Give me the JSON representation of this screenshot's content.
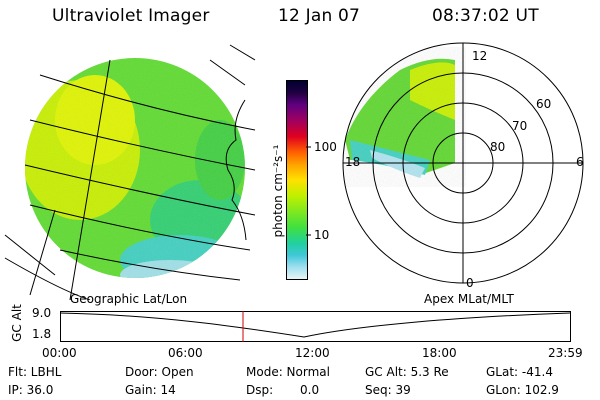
{
  "header": {
    "title": "Ultraviolet Imager",
    "date": "12 Jan 07",
    "time": "08:37:02 UT"
  },
  "colorbar": {
    "unit_label": "photon cm⁻²s⁻¹",
    "ticks": [
      "100",
      "10"
    ],
    "colors": [
      "#000040",
      "#400080",
      "#800080",
      "#c00020",
      "#ff0000",
      "#ff8000",
      "#ffc000",
      "#ffff00",
      "#c0ff00",
      "#80ff00",
      "#40e040",
      "#00d080",
      "#00c0c0",
      "#60d0e0",
      "#a0e0f0",
      "#e0f0f0"
    ]
  },
  "labels": {
    "left_projection": "Geographic Lat/Lon",
    "right_projection": "Apex MLat/MLT"
  },
  "polar": {
    "mlt_labels": [
      "12",
      "18",
      "6",
      "0"
    ],
    "lat_labels": [
      "60",
      "70",
      "80"
    ]
  },
  "altitude_plot": {
    "y_axis_label": "GC Alt",
    "y_ticks": [
      "9.0",
      "1.8"
    ],
    "time_ticks": [
      "00:00",
      "06:00",
      "12:00",
      "18:00",
      "23:59"
    ],
    "current_time_marker_color": "#cc0000"
  },
  "footer": {
    "flt": "Flt: LBHL",
    "ip": "IP: 36.0",
    "door": "Door: Open",
    "gain": "Gain: 14",
    "mode": "Mode: Normal",
    "dsp_label": "Dsp:",
    "dsp_value": "0.0",
    "gc_alt": "GC Alt: 5.3 Re",
    "seq": "Seq: 39",
    "glat": "GLat: -41.4",
    "glon": "GLon: 102.9"
  }
}
